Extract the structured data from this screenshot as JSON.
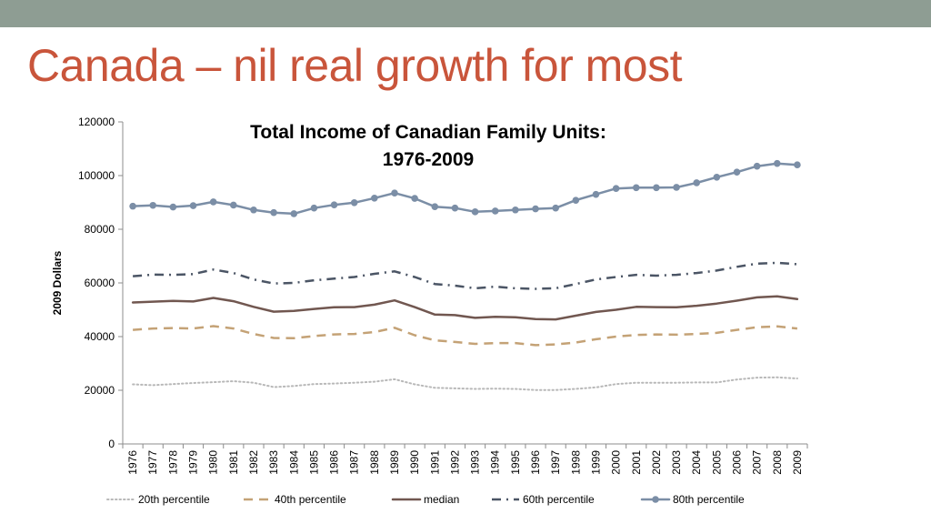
{
  "slide": {
    "title": "Canada – nil real growth for most"
  },
  "chart_data": {
    "type": "line",
    "title_lines": [
      "Total Income of Canadian Family Units:",
      "1976-2009"
    ],
    "xlabel": "",
    "ylabel": "2009 Dollars",
    "ylim": [
      0,
      120000
    ],
    "yticks": [
      0,
      20000,
      40000,
      60000,
      80000,
      100000,
      120000
    ],
    "grid": false,
    "legend_position": "bottom",
    "categories": [
      "1976",
      "1977",
      "1978",
      "1979",
      "1980",
      "1981",
      "1982",
      "1983",
      "1984",
      "1985",
      "1986",
      "1987",
      "1988",
      "1989",
      "1990",
      "1991",
      "1992",
      "1993",
      "1994",
      "1995",
      "1996",
      "1997",
      "1998",
      "1999",
      "2000",
      "2001",
      "2002",
      "2003",
      "2004",
      "2005",
      "2006",
      "2007",
      "2008",
      "2009"
    ],
    "series": [
      {
        "name": "20th percentile",
        "color": "#b8b8b8",
        "style": "dotted",
        "values": [
          22200,
          21900,
          22300,
          22700,
          23000,
          23400,
          22800,
          21200,
          21600,
          22300,
          22500,
          22800,
          23200,
          24100,
          22200,
          20900,
          20700,
          20500,
          20600,
          20500,
          20100,
          20100,
          20500,
          21100,
          22300,
          22800,
          22800,
          22800,
          22900,
          22900,
          24000,
          24700,
          24800,
          24400
        ]
      },
      {
        "name": "40th percentile",
        "color": "#c4a276",
        "style": "dashed",
        "values": [
          42500,
          43000,
          43200,
          43000,
          43900,
          43000,
          41000,
          39500,
          39400,
          40200,
          40800,
          41000,
          41700,
          43300,
          40500,
          38600,
          38000,
          37300,
          37600,
          37600,
          36800,
          37100,
          37800,
          39000,
          40000,
          40600,
          40800,
          40700,
          41000,
          41400,
          42500,
          43500,
          43800,
          43000
        ]
      },
      {
        "name": "median",
        "color": "#715750",
        "style": "solid",
        "values": [
          52700,
          53000,
          53300,
          53100,
          54400,
          53200,
          51100,
          49300,
          49600,
          50300,
          50900,
          51000,
          51900,
          53500,
          51000,
          48200,
          48000,
          47000,
          47400,
          47200,
          46500,
          46400,
          47800,
          49200,
          50000,
          51100,
          51000,
          50900,
          51500,
          52300,
          53400,
          54600,
          55000,
          54000
        ]
      },
      {
        "name": "60th percentile",
        "color": "#4b5565",
        "style": "dashdot",
        "values": [
          62500,
          63100,
          63000,
          63300,
          65000,
          63700,
          61300,
          59800,
          60000,
          61000,
          61600,
          62200,
          63400,
          64300,
          62200,
          59600,
          59000,
          58000,
          58600,
          58000,
          57800,
          58000,
          59600,
          61300,
          62200,
          63000,
          62700,
          63000,
          63700,
          64600,
          66000,
          67200,
          67500,
          67000
        ]
      },
      {
        "name": "80th percentile",
        "color": "#7b8ea6",
        "style": "solid-markers",
        "values": [
          88600,
          88900,
          88300,
          88800,
          90200,
          89000,
          87200,
          86200,
          85800,
          87900,
          89100,
          89900,
          91600,
          93500,
          91500,
          88400,
          87900,
          86500,
          86800,
          87200,
          87600,
          87900,
          90800,
          93000,
          95200,
          95500,
          95500,
          95600,
          97300,
          99400,
          101300,
          103500,
          104500,
          104000
        ]
      }
    ]
  }
}
